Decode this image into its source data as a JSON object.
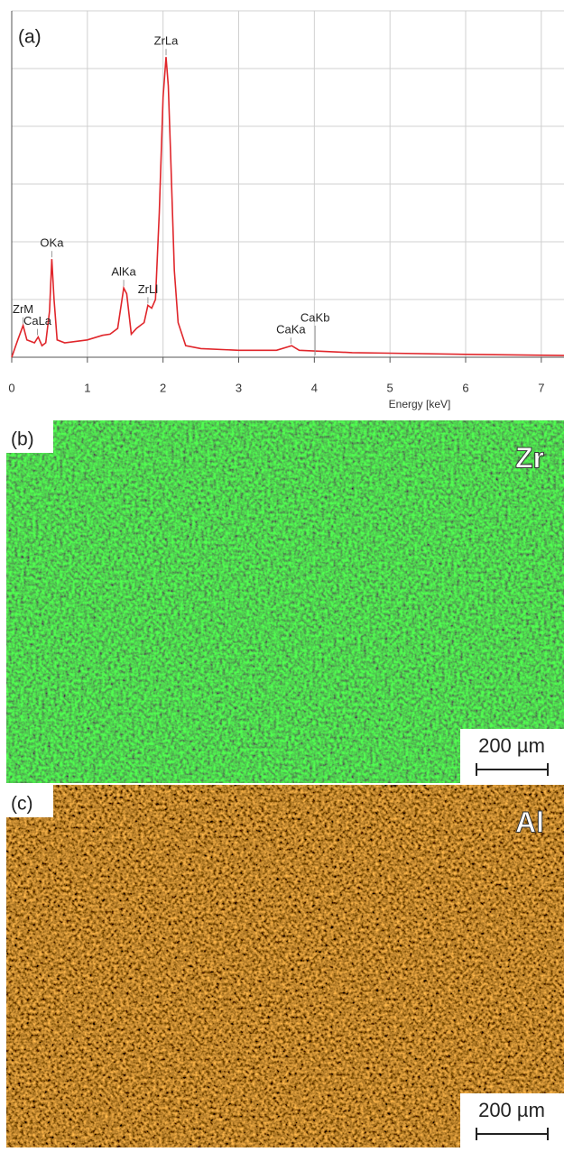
{
  "chart_data": {
    "type": "line",
    "panel_label": "(a)",
    "x_label": "Energy [keV]",
    "x": [
      0,
      0.08,
      0.15,
      0.2,
      0.3,
      0.35,
      0.4,
      0.45,
      0.5,
      0.53,
      0.56,
      0.6,
      0.7,
      1.0,
      1.2,
      1.3,
      1.4,
      1.48,
      1.52,
      1.58,
      1.65,
      1.75,
      1.8,
      1.85,
      1.9,
      1.95,
      2.0,
      2.04,
      2.07,
      2.1,
      2.15,
      2.2,
      2.3,
      2.5,
      3.0,
      3.5,
      3.7,
      3.8,
      4.5,
      5.0,
      6.0,
      7.3
    ],
    "values": [
      0,
      0.3,
      0.55,
      0.3,
      0.25,
      0.35,
      0.2,
      0.25,
      0.8,
      1.7,
      1.0,
      0.3,
      0.25,
      0.3,
      0.38,
      0.4,
      0.5,
      1.2,
      1.1,
      0.4,
      0.5,
      0.6,
      0.9,
      0.85,
      1.0,
      2.5,
      4.5,
      5.2,
      4.7,
      3.5,
      1.5,
      0.6,
      0.2,
      0.15,
      0.12,
      0.12,
      0.2,
      0.12,
      0.08,
      0.07,
      0.05,
      0.03
    ],
    "color": "#e0262b",
    "xlim": [
      0,
      7.3
    ],
    "xticks": [
      0,
      1,
      2,
      3,
      4,
      5,
      6,
      7
    ],
    "ylim": [
      0,
      6
    ],
    "yticks": [
      0,
      1,
      2,
      3,
      4,
      5,
      6
    ],
    "grid": true,
    "annotations": [
      {
        "text": "ZrM",
        "x": 0.15
      },
      {
        "text": "CaLa",
        "x": 0.34
      },
      {
        "text": "OKa",
        "x": 0.53
      },
      {
        "text": "AlKa",
        "x": 1.48
      },
      {
        "text": "ZrLl",
        "x": 1.8
      },
      {
        "text": "ZrLa",
        "x": 2.04
      },
      {
        "text": "CaKa",
        "x": 3.69
      },
      {
        "text": "CaKb",
        "x": 4.01
      }
    ]
  },
  "panels": [
    {
      "label": "(b)",
      "element": "Zr",
      "scale_bar": "200 µm"
    },
    {
      "label": "(c)",
      "element": "Al",
      "scale_bar": "200 µm"
    }
  ]
}
